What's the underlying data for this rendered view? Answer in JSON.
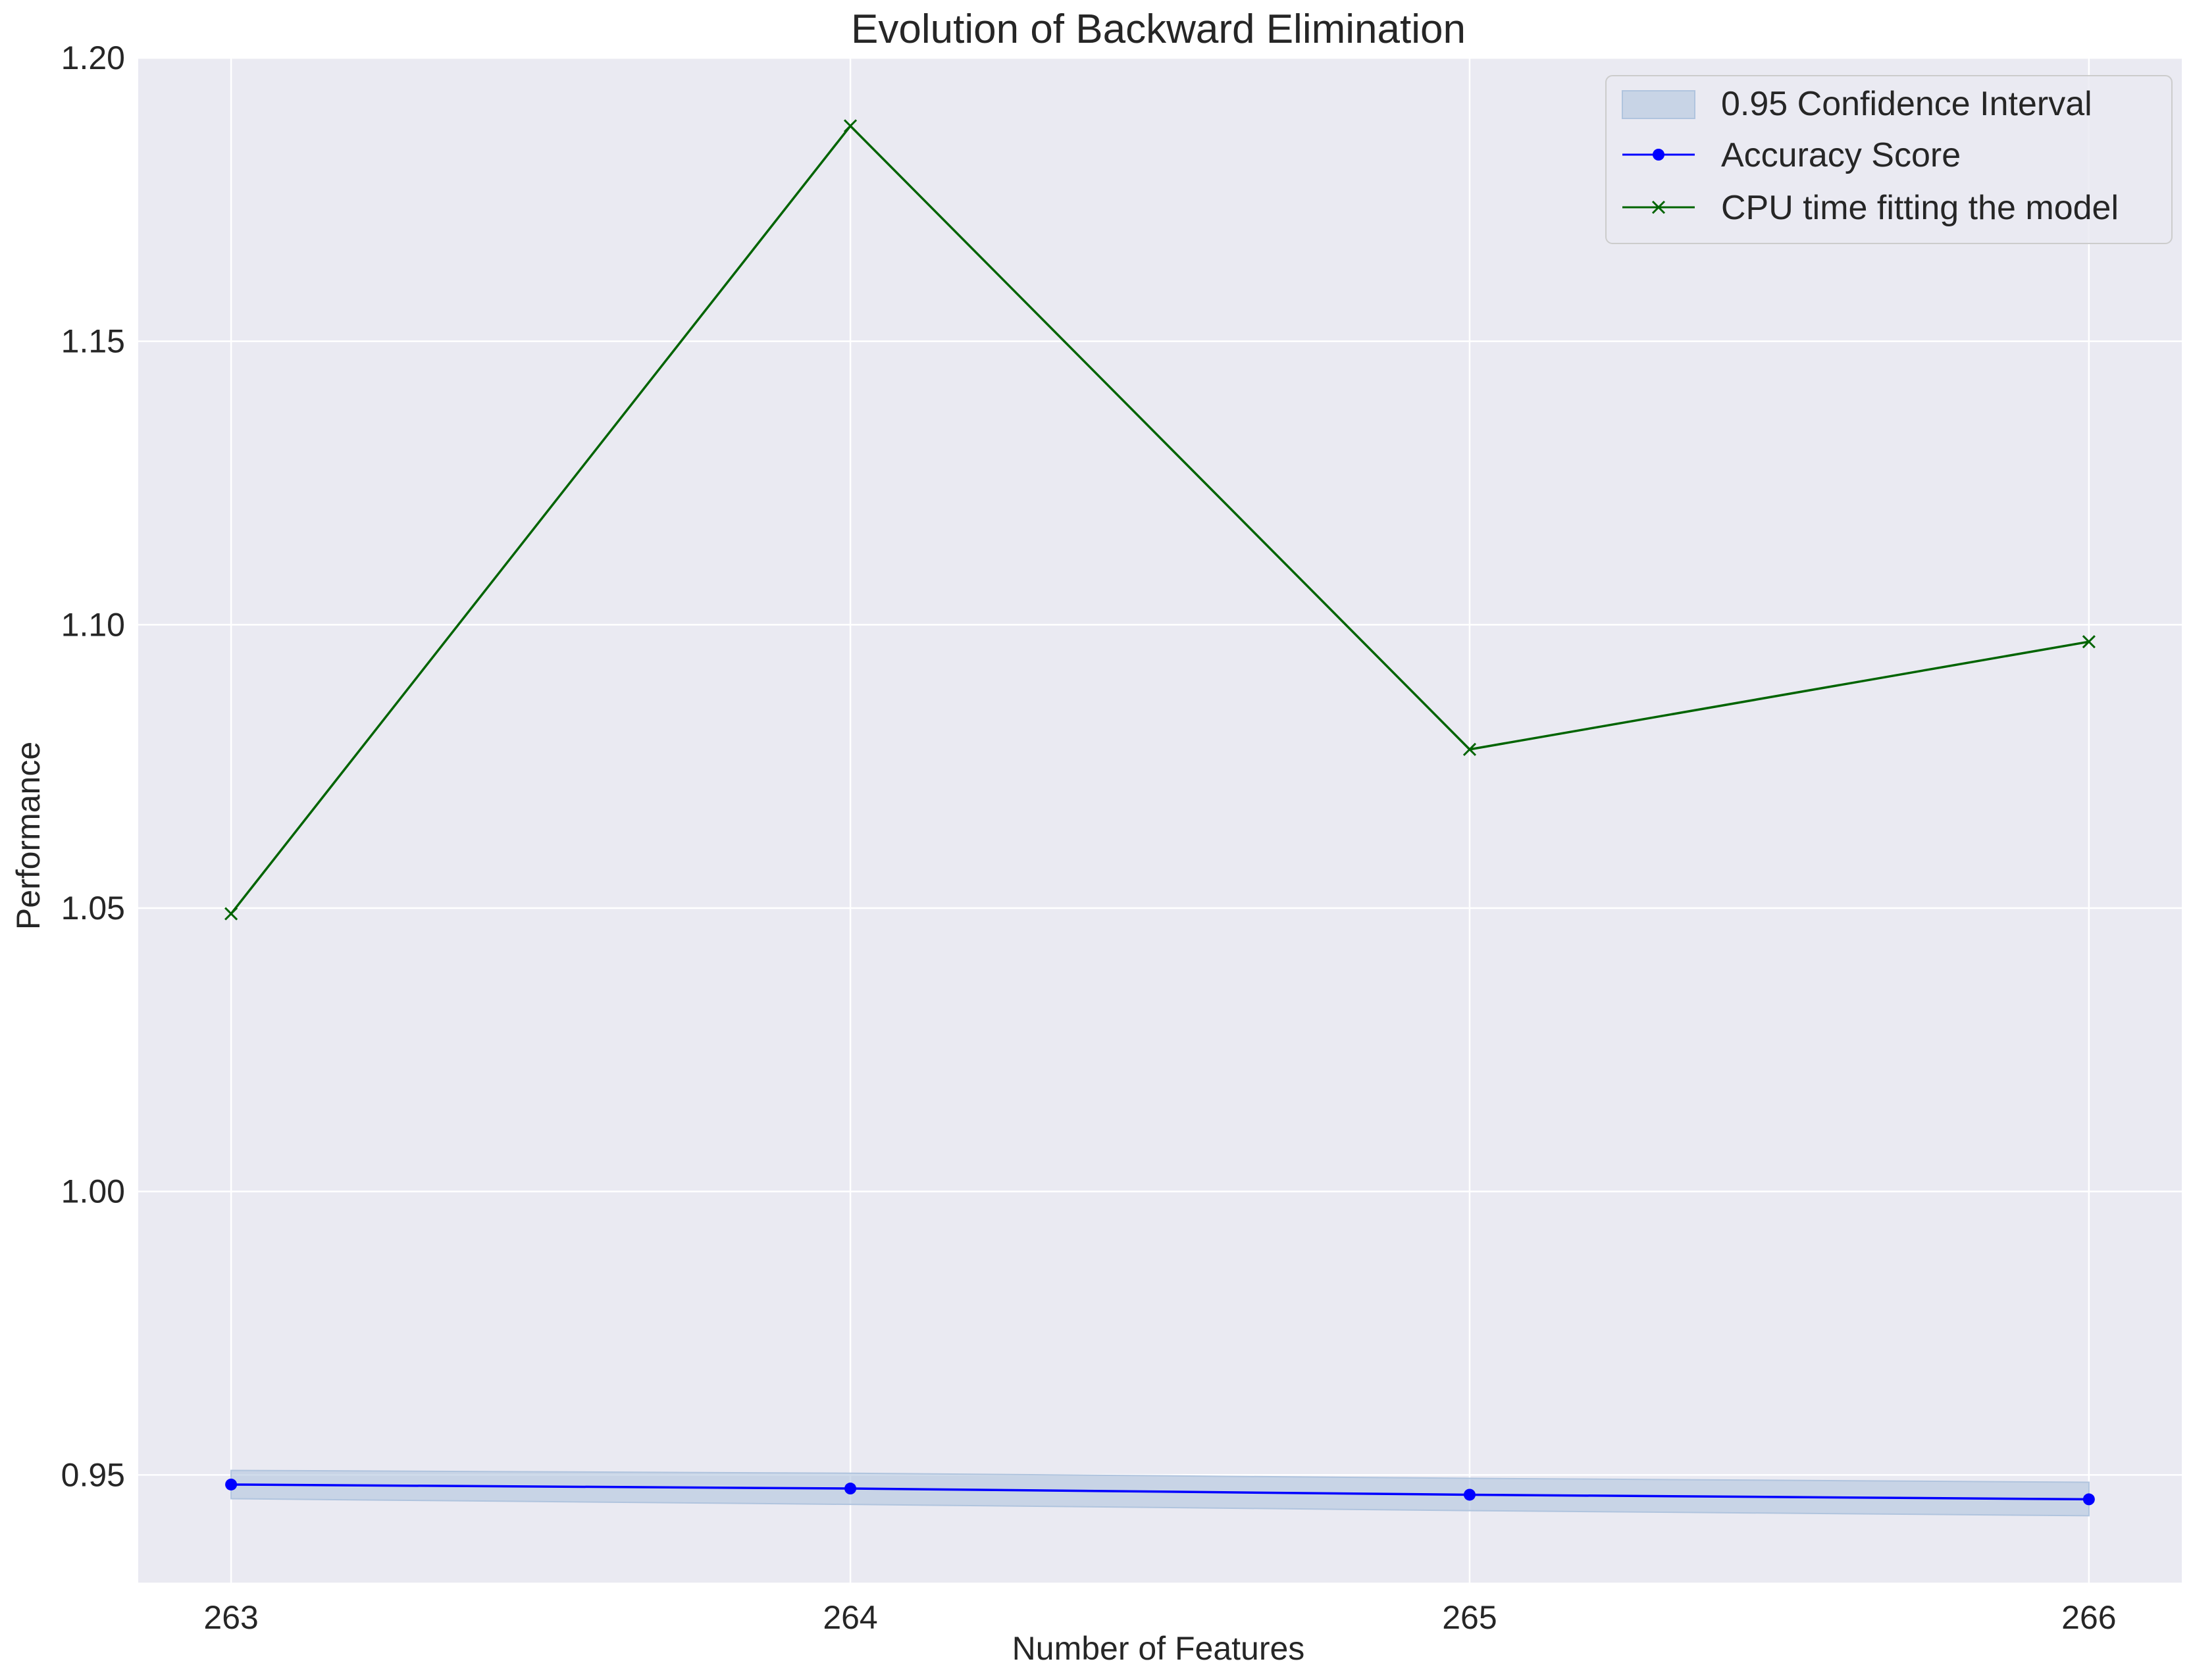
{
  "chart_data": {
    "type": "line",
    "title": "Evolution of Backward Elimination",
    "xlabel": "Number of Features",
    "ylabel": "Performance",
    "x": [
      263,
      264,
      265,
      266
    ],
    "xticks": [
      "263",
      "264",
      "265",
      "266"
    ],
    "yticks": [
      "0.95",
      "1.00",
      "1.05",
      "1.10",
      "1.15",
      "1.20"
    ],
    "ytick_values": [
      0.95,
      1.0,
      1.05,
      1.1,
      1.15,
      1.2
    ],
    "xlim": [
      262.85,
      266.15
    ],
    "ylim": [
      0.931,
      1.2
    ],
    "grid": true,
    "legend_position": "top-right",
    "series": [
      {
        "name": "Accuracy Score",
        "values": [
          0.9483,
          0.9476,
          0.9465,
          0.9457
        ],
        "color": "#0000ff",
        "marker": "circle"
      },
      {
        "name": "CPU time fitting the model",
        "values": [
          1.049,
          1.188,
          1.078,
          1.097
        ],
        "color": "#006400",
        "marker": "x"
      }
    ],
    "confidence_interval": {
      "name": "0.95 Confidence Interval",
      "lower": [
        0.9458,
        0.9448,
        0.9437,
        0.9428
      ],
      "upper": [
        0.9508,
        0.9503,
        0.9494,
        0.9487
      ],
      "color": "#b0c4de"
    },
    "colors": {
      "plot_background": "#eaeaf2",
      "gridline": "#ffffff"
    }
  }
}
